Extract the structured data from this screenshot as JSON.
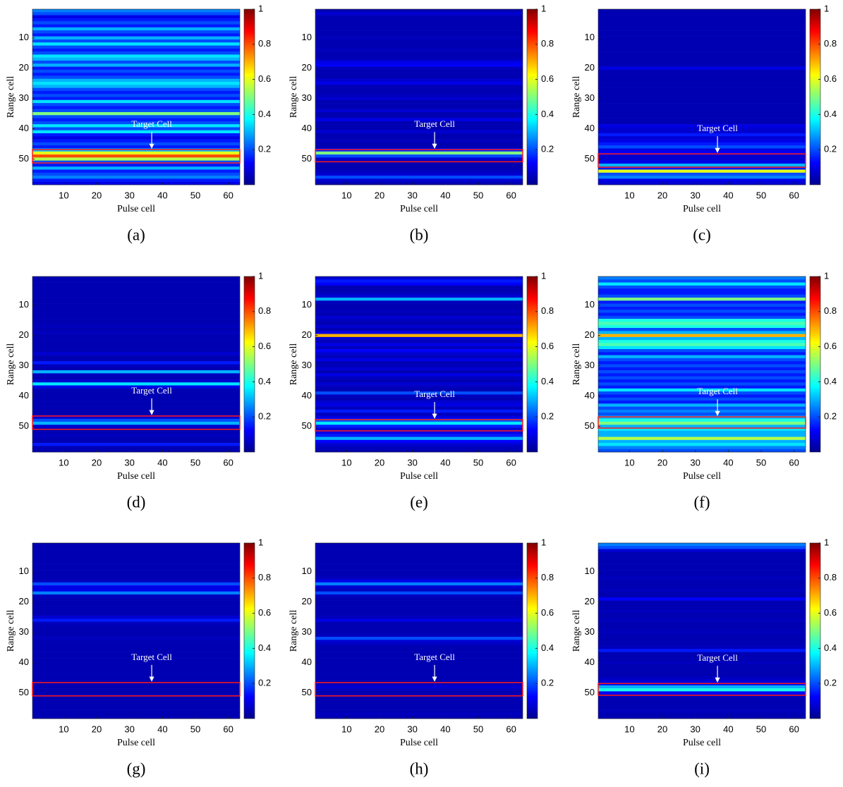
{
  "chart_data": [
    {
      "type": "heatmap",
      "caption": "(a)",
      "x_label": "Pulse cell",
      "y_label": "Range cell",
      "annotation": "Target Cell",
      "xlim": [
        0.5,
        63.5
      ],
      "ylim": [
        0.5,
        58.5
      ],
      "xticks": [
        10,
        20,
        30,
        40,
        50,
        60
      ],
      "yticks": [
        10,
        20,
        30,
        40,
        50
      ],
      "clim": [
        0,
        1
      ],
      "cticks": [
        0.2,
        0.4,
        0.6,
        0.8,
        1
      ],
      "target_box": [
        46.9,
        51.3
      ],
      "values": [
        0.25,
        0.2,
        0.1,
        0.15,
        0.2,
        0.15,
        0.3,
        0.2,
        0.15,
        0.3,
        0.2,
        0.35,
        0.2,
        0.15,
        0.2,
        0.35,
        0.3,
        0.2,
        0.3,
        0.15,
        0.2,
        0.15,
        0.2,
        0.3,
        0.35,
        0.3,
        0.2,
        0.15,
        0.2,
        0.15,
        0.35,
        0.2,
        0.15,
        0.2,
        0.5,
        0.2,
        0.15,
        0.2,
        0.35,
        0.2,
        0.35,
        0.15,
        0.1,
        0.15,
        0.2,
        0.15,
        0.3,
        0.6,
        0.8,
        0.55,
        0.2,
        0.15,
        0.3,
        0.15,
        0.2,
        0.25,
        0.15,
        0.1
      ]
    },
    {
      "type": "heatmap",
      "caption": "(b)",
      "x_label": "Pulse cell",
      "y_label": "Range cell",
      "annotation": "Target Cell",
      "xlim": [
        0.5,
        63.5
      ],
      "ylim": [
        0.5,
        58.5
      ],
      "xticks": [
        10,
        20,
        30,
        40,
        50,
        60
      ],
      "yticks": [
        10,
        20,
        30,
        40,
        50
      ],
      "clim": [
        0,
        1
      ],
      "cticks": [
        0.2,
        0.4,
        0.6,
        0.8,
        1
      ],
      "target_box": [
        46.9,
        50.9
      ],
      "values": [
        0.05,
        0.08,
        0.05,
        0.05,
        0.05,
        0.05,
        0.05,
        0.05,
        0.05,
        0.06,
        0.05,
        0.05,
        0.05,
        0.06,
        0.05,
        0.05,
        0.06,
        0.1,
        0.12,
        0.06,
        0.05,
        0.05,
        0.05,
        0.08,
        0.1,
        0.05,
        0.05,
        0.05,
        0.06,
        0.08,
        0.05,
        0.05,
        0.05,
        0.08,
        0.05,
        0.05,
        0.1,
        0.05,
        0.05,
        0.05,
        0.08,
        0.05,
        0.05,
        0.06,
        0.05,
        0.05,
        0.15,
        0.5,
        0.2,
        0.08,
        0.05,
        0.05,
        0.05,
        0.06,
        0.08,
        0.2,
        0.08,
        0.05
      ]
    },
    {
      "type": "heatmap",
      "caption": "(c)",
      "x_label": "Pulse cell",
      "y_label": "Range cell",
      "annotation": "Target Cell",
      "xlim": [
        0.5,
        63.5
      ],
      "ylim": [
        0.5,
        58.5
      ],
      "xticks": [
        10,
        20,
        30,
        40,
        50,
        60
      ],
      "yticks": [
        10,
        20,
        30,
        40,
        50
      ],
      "clim": [
        0,
        1
      ],
      "cticks": [
        0.2,
        0.4,
        0.6,
        0.8,
        1
      ],
      "target_box": [
        48.3,
        52.7
      ],
      "values": [
        0.05,
        0.05,
        0.05,
        0.05,
        0.05,
        0.05,
        0.05,
        0.05,
        0.05,
        0.05,
        0.05,
        0.05,
        0.05,
        0.05,
        0.05,
        0.05,
        0.05,
        0.05,
        0.05,
        0.1,
        0.05,
        0.05,
        0.05,
        0.05,
        0.05,
        0.05,
        0.05,
        0.05,
        0.05,
        0.05,
        0.05,
        0.05,
        0.05,
        0.05,
        0.05,
        0.05,
        0.05,
        0.05,
        0.1,
        0.08,
        0.08,
        0.15,
        0.08,
        0.1,
        0.15,
        0.2,
        0.1,
        0.12,
        0.08,
        0.08,
        0.1,
        0.3,
        0.15,
        0.6,
        0.2,
        0.25,
        0.1,
        0.08
      ]
    },
    {
      "type": "heatmap",
      "caption": "(d)",
      "x_label": "Pulse cell",
      "y_label": "Range cell",
      "annotation": "Target Cell",
      "xlim": [
        0.5,
        63.5
      ],
      "ylim": [
        0.5,
        58.5
      ],
      "xticks": [
        10,
        20,
        30,
        40,
        50,
        60
      ],
      "yticks": [
        10,
        20,
        30,
        40,
        50
      ],
      "clim": [
        0,
        1
      ],
      "cticks": [
        0.2,
        0.4,
        0.6,
        0.8,
        1
      ],
      "target_box": [
        46.6,
        51.0
      ],
      "values": [
        0.05,
        0.05,
        0.05,
        0.05,
        0.05,
        0.05,
        0.05,
        0.05,
        0.05,
        0.05,
        0.05,
        0.05,
        0.05,
        0.05,
        0.05,
        0.05,
        0.06,
        0.05,
        0.06,
        0.05,
        0.05,
        0.05,
        0.05,
        0.05,
        0.05,
        0.08,
        0.05,
        0.05,
        0.15,
        0.06,
        0.05,
        0.3,
        0.06,
        0.05,
        0.08,
        0.35,
        0.1,
        0.05,
        0.05,
        0.05,
        0.05,
        0.05,
        0.05,
        0.05,
        0.05,
        0.05,
        0.08,
        0.2,
        0.3,
        0.08,
        0.05,
        0.05,
        0.06,
        0.05,
        0.05,
        0.15,
        0.05,
        0.05
      ]
    },
    {
      "type": "heatmap",
      "caption": "(e)",
      "x_label": "Pulse cell",
      "y_label": "Range cell",
      "annotation": "Target Cell",
      "xlim": [
        0.5,
        63.5
      ],
      "ylim": [
        0.5,
        58.5
      ],
      "xticks": [
        10,
        20,
        30,
        40,
        50,
        60
      ],
      "yticks": [
        10,
        20,
        30,
        40,
        50
      ],
      "clim": [
        0,
        1
      ],
      "cticks": [
        0.2,
        0.4,
        0.6,
        0.8,
        1
      ],
      "target_box": [
        47.8,
        51.5
      ],
      "values": [
        0.08,
        0.15,
        0.12,
        0.05,
        0.05,
        0.06,
        0.08,
        0.3,
        0.06,
        0.05,
        0.05,
        0.06,
        0.05,
        0.08,
        0.06,
        0.05,
        0.08,
        0.05,
        0.1,
        0.7,
        0.08,
        0.06,
        0.1,
        0.06,
        0.12,
        0.08,
        0.06,
        0.1,
        0.05,
        0.06,
        0.08,
        0.05,
        0.1,
        0.06,
        0.05,
        0.08,
        0.06,
        0.05,
        0.2,
        0.06,
        0.05,
        0.08,
        0.1,
        0.06,
        0.15,
        0.06,
        0.1,
        0.2,
        0.35,
        0.15,
        0.08,
        0.1,
        0.15,
        0.3,
        0.12,
        0.08,
        0.06,
        0.05
      ]
    },
    {
      "type": "heatmap",
      "caption": "(f)",
      "x_label": "Pulse cell",
      "y_label": "Range cell",
      "annotation": "Target Cell",
      "xlim": [
        0.5,
        63.5
      ],
      "ylim": [
        0.5,
        58.5
      ],
      "xticks": [
        10,
        20,
        30,
        40,
        50,
        60
      ],
      "yticks": [
        10,
        20,
        30,
        40,
        50
      ],
      "clim": [
        0,
        1
      ],
      "cticks": [
        0.2,
        0.4,
        0.6,
        0.8,
        1
      ],
      "target_box": [
        46.9,
        50.6
      ],
      "values": [
        0.25,
        0.2,
        0.35,
        0.2,
        0.15,
        0.15,
        0.2,
        0.5,
        0.15,
        0.2,
        0.15,
        0.2,
        0.15,
        0.2,
        0.4,
        0.45,
        0.4,
        0.2,
        0.3,
        0.7,
        0.3,
        0.4,
        0.45,
        0.35,
        0.2,
        0.15,
        0.3,
        0.2,
        0.15,
        0.2,
        0.15,
        0.2,
        0.15,
        0.2,
        0.15,
        0.2,
        0.15,
        0.35,
        0.2,
        0.15,
        0.2,
        0.15,
        0.3,
        0.2,
        0.25,
        0.2,
        0.3,
        0.4,
        0.5,
        0.3,
        0.35,
        0.3,
        0.3,
        0.55,
        0.3,
        0.35,
        0.25,
        0.2
      ]
    },
    {
      "type": "heatmap",
      "caption": "(g)",
      "x_label": "Pulse cell",
      "y_label": "Range cell",
      "annotation": "Target Cell",
      "xlim": [
        0.5,
        63.5
      ],
      "ylim": [
        0.5,
        58.5
      ],
      "xticks": [
        10,
        20,
        30,
        40,
        50,
        60
      ],
      "yticks": [
        10,
        20,
        30,
        40,
        50
      ],
      "clim": [
        0,
        1
      ],
      "cticks": [
        0.2,
        0.4,
        0.6,
        0.8,
        1
      ],
      "target_box": [
        46.6,
        51.0
      ],
      "values": [
        0.05,
        0.05,
        0.05,
        0.05,
        0.05,
        0.05,
        0.05,
        0.05,
        0.05,
        0.05,
        0.05,
        0.05,
        0.06,
        0.2,
        0.1,
        0.1,
        0.25,
        0.06,
        0.05,
        0.05,
        0.05,
        0.05,
        0.05,
        0.05,
        0.08,
        0.15,
        0.06,
        0.05,
        0.05,
        0.05,
        0.05,
        0.06,
        0.05,
        0.05,
        0.05,
        0.05,
        0.05,
        0.05,
        0.05,
        0.05,
        0.05,
        0.05,
        0.05,
        0.05,
        0.05,
        0.05,
        0.05,
        0.05,
        0.05,
        0.05,
        0.05,
        0.05,
        0.05,
        0.05,
        0.05,
        0.05,
        0.05,
        0.05
      ]
    },
    {
      "type": "heatmap",
      "caption": "(h)",
      "x_label": "Pulse cell",
      "y_label": "Range cell",
      "annotation": "Target Cell",
      "xlim": [
        0.5,
        63.5
      ],
      "ylim": [
        0.5,
        58.5
      ],
      "xticks": [
        10,
        20,
        30,
        40,
        50,
        60
      ],
      "yticks": [
        10,
        20,
        30,
        40,
        50
      ],
      "clim": [
        0,
        1
      ],
      "cticks": [
        0.2,
        0.4,
        0.6,
        0.8,
        1
      ],
      "target_box": [
        46.6,
        51.0
      ],
      "values": [
        0.05,
        0.05,
        0.05,
        0.05,
        0.05,
        0.05,
        0.05,
        0.05,
        0.05,
        0.05,
        0.05,
        0.06,
        0.1,
        0.25,
        0.08,
        0.06,
        0.2,
        0.06,
        0.05,
        0.05,
        0.05,
        0.05,
        0.05,
        0.05,
        0.06,
        0.1,
        0.05,
        0.05,
        0.05,
        0.05,
        0.06,
        0.2,
        0.08,
        0.06,
        0.05,
        0.05,
        0.05,
        0.05,
        0.05,
        0.05,
        0.05,
        0.05,
        0.05,
        0.05,
        0.05,
        0.05,
        0.06,
        0.08,
        0.06,
        0.05,
        0.05,
        0.05,
        0.05,
        0.05,
        0.05,
        0.05,
        0.06,
        0.05
      ]
    },
    {
      "type": "heatmap",
      "caption": "(i)",
      "x_label": "Pulse cell",
      "y_label": "Range cell",
      "annotation": "Target Cell",
      "xlim": [
        0.5,
        63.5
      ],
      "ylim": [
        0.5,
        58.5
      ],
      "xticks": [
        10,
        20,
        30,
        40,
        50,
        60
      ],
      "yticks": [
        10,
        20,
        30,
        40,
        50
      ],
      "clim": [
        0,
        1
      ],
      "cticks": [
        0.2,
        0.4,
        0.6,
        0.8,
        1
      ],
      "target_box": [
        46.9,
        50.8
      ],
      "values": [
        0.25,
        0.2,
        0.08,
        0.05,
        0.05,
        0.05,
        0.05,
        0.05,
        0.05,
        0.05,
        0.05,
        0.06,
        0.05,
        0.05,
        0.05,
        0.06,
        0.05,
        0.05,
        0.12,
        0.05,
        0.05,
        0.05,
        0.06,
        0.05,
        0.05,
        0.06,
        0.05,
        0.05,
        0.05,
        0.06,
        0.05,
        0.05,
        0.05,
        0.05,
        0.06,
        0.15,
        0.05,
        0.05,
        0.05,
        0.06,
        0.05,
        0.05,
        0.05,
        0.05,
        0.06,
        0.08,
        0.1,
        0.3,
        0.4,
        0.12,
        0.06,
        0.05,
        0.05,
        0.05,
        0.05,
        0.06,
        0.05,
        0.05
      ]
    }
  ]
}
